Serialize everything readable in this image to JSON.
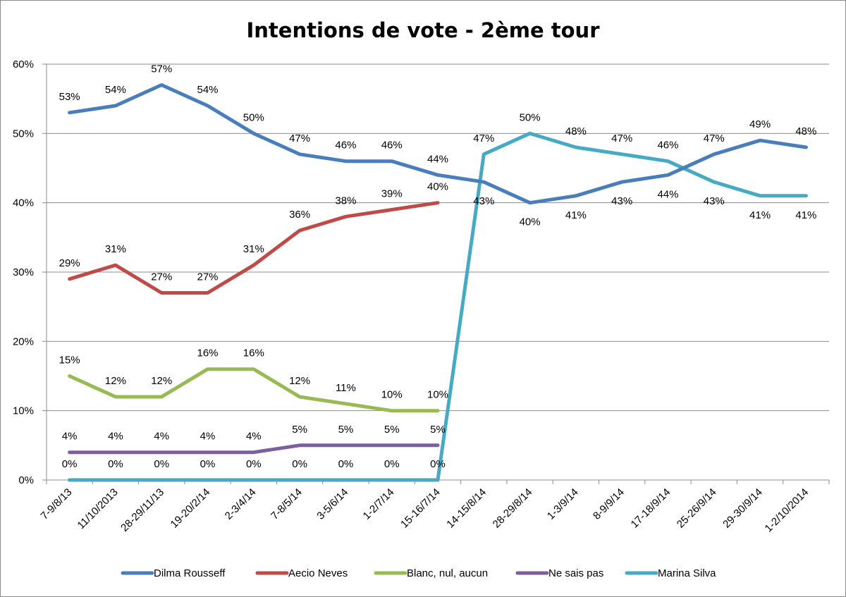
{
  "chart_data": {
    "type": "line",
    "title": "Intentions de vote - 2ème tour",
    "xlabel": "",
    "ylabel": "",
    "ylim": [
      0,
      60
    ],
    "yticks": [
      "0%",
      "10%",
      "20%",
      "30%",
      "40%",
      "50%",
      "60%"
    ],
    "grid": true,
    "legend_position": "bottom",
    "categories": [
      "7-9/8/13",
      "11/10/2013",
      "28-29/11/13",
      "19-20/2/14",
      "2-3/4/14",
      "7-8/5/14",
      "3-5/6/14",
      "1-2/7/14",
      "15-16/7/14",
      "14-15/8/14",
      "28-29/8/14",
      "1-3/9/14",
      "8-9/9/14",
      "17-18/9/14",
      "25-26/9/14",
      "29-30/9/14",
      "1-2/10/2014"
    ],
    "series": [
      {
        "name": "Dilma Rousseff",
        "color": "#4a7ebb",
        "values": [
          53,
          54,
          57,
          54,
          50,
          47,
          46,
          46,
          44,
          43,
          40,
          41,
          43,
          44,
          47,
          49,
          48
        ]
      },
      {
        "name": "Aecio Neves",
        "color": "#be4b48",
        "values": [
          29,
          31,
          27,
          27,
          31,
          36,
          38,
          39,
          40,
          null,
          null,
          null,
          null,
          null,
          null,
          null,
          null
        ]
      },
      {
        "name": "Blanc, nul, aucun",
        "color": "#98b954",
        "values": [
          15,
          12,
          12,
          16,
          16,
          12,
          11,
          10,
          10,
          null,
          null,
          null,
          null,
          null,
          null,
          null,
          null
        ]
      },
      {
        "name": "Ne sais pas",
        "color": "#7d5fa0",
        "values": [
          4,
          4,
          4,
          4,
          4,
          5,
          5,
          5,
          5,
          null,
          null,
          null,
          null,
          null,
          null,
          null,
          null
        ]
      },
      {
        "name": "Marina Silva",
        "color": "#46aac5",
        "values": [
          0,
          0,
          0,
          0,
          0,
          0,
          0,
          0,
          0,
          47,
          50,
          48,
          47,
          46,
          43,
          41,
          41
        ]
      }
    ]
  }
}
